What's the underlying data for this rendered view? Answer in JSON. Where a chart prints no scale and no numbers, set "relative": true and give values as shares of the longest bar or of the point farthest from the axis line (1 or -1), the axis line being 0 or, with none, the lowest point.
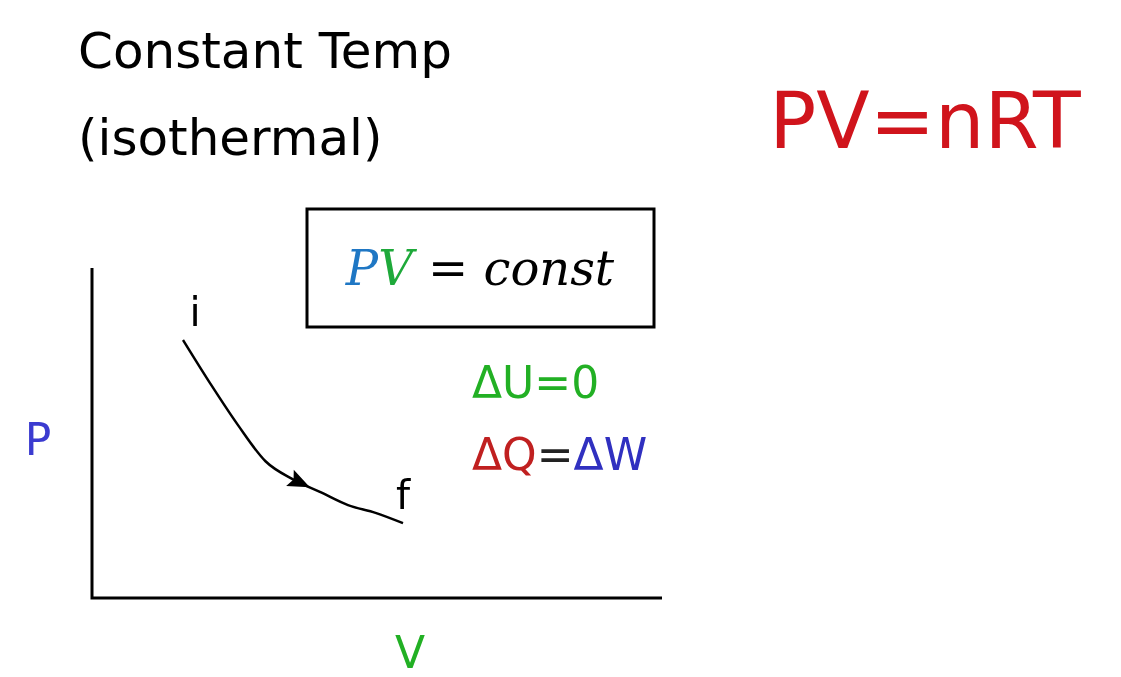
{
  "chart_data": {
    "type": "line",
    "title": "Constant Temp (isothermal)",
    "xlabel": "V",
    "ylabel": "P",
    "relative": true,
    "categories": [
      null,
      null,
      null,
      null,
      null,
      null,
      null,
      null,
      null
    ],
    "series": [
      {
        "color": "#000000",
        "values": [
          1,
          0.83,
          0.67,
          0.53,
          0.46,
          0.41,
          0.36,
          0.33,
          0.29
        ]
      }
    ],
    "annotations": [
      "PV=nRT",
      "PV = const",
      "ΔU=0",
      "ΔQ=ΔW",
      "i",
      "f"
    ]
  }
}
